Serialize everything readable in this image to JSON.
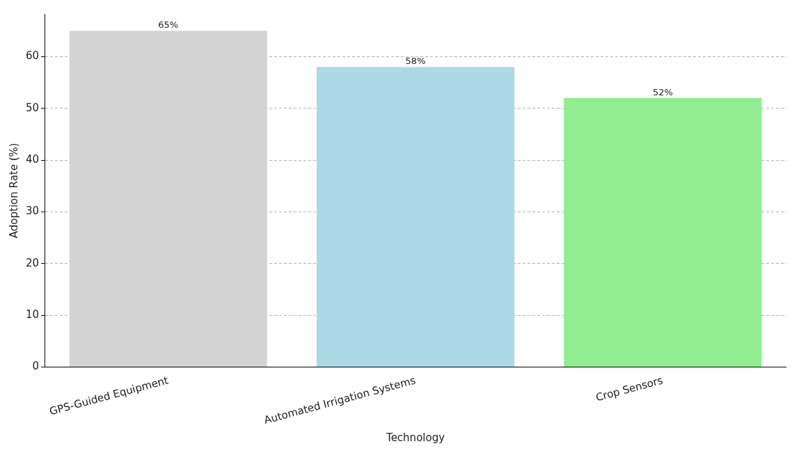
{
  "chart_data": {
    "type": "bar",
    "xlabel": "Technology",
    "ylabel": "Adoption Rate (%)",
    "categories": [
      "GPS-Guided Equipment",
      "Automated Irrigation Systems",
      "Crop Sensors"
    ],
    "values": [
      65,
      58,
      52
    ],
    "colors": [
      "#d3d3d3",
      "#add8e6",
      "#90ee90"
    ],
    "value_labels": [
      "65%",
      "58%",
      "52%"
    ],
    "ylim": [
      0,
      68.25
    ],
    "yticks": [
      0,
      10,
      20,
      30,
      40,
      50,
      60
    ],
    "grid": "y",
    "legend": false
  }
}
